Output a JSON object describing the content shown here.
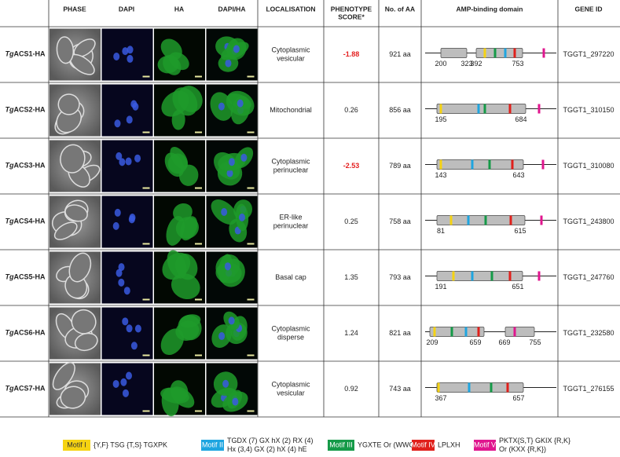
{
  "header": {
    "columns": [
      "PHASE",
      "DAPI",
      "HA",
      "DAPI/HA",
      "LOCALISATION",
      [
        "PHENOTYPE",
        "SCORE*"
      ],
      "No. of AA",
      "AMP-binding domain",
      "GENE ID"
    ]
  },
  "rows": [
    {
      "prefix": "Tg",
      "name": "ACS1-HA",
      "localisation": [
        "Cytoplasmic",
        "vesicular"
      ],
      "score": "-1.88",
      "aa": "921 aa",
      "domain_labels": [
        "200",
        "323",
        "392",
        "753"
      ],
      "gene_id": "TGGT1_297220"
    },
    {
      "prefix": "Tg",
      "name": "ACS2-HA",
      "localisation": [
        "Mitochondrial"
      ],
      "score": "0.26",
      "aa": "856 aa",
      "domain_labels": [
        "195",
        "684"
      ],
      "gene_id": "TGGT1_310150"
    },
    {
      "prefix": "Tg",
      "name": "ACS3-HA",
      "localisation": [
        "Cytoplasmic",
        "perinuclear"
      ],
      "score": "-2.53",
      "aa": "789 aa",
      "domain_labels": [
        "143",
        "643"
      ],
      "gene_id": "TGGT1_310080"
    },
    {
      "prefix": "Tg",
      "name": "ACS4-HA",
      "localisation": [
        "ER-like",
        "perinuclear"
      ],
      "score": "0.25",
      "aa": "758 aa",
      "domain_labels": [
        "81",
        "615"
      ],
      "gene_id": "TGGT1_243800"
    },
    {
      "prefix": "Tg",
      "name": "ACS5-HA",
      "localisation": [
        "Basal cap"
      ],
      "score": "1.35",
      "aa": "793 aa",
      "domain_labels": [
        "191",
        "651"
      ],
      "gene_id": "TGGT1_247760"
    },
    {
      "prefix": "Tg",
      "name": "ACS6-HA",
      "localisation": [
        "Cytoplasmic",
        "disperse"
      ],
      "score": "1.24",
      "aa": "821 aa",
      "domain_labels": [
        "209",
        "659",
        "669",
        "755"
      ],
      "gene_id": "TGGT1_232580"
    },
    {
      "prefix": "Tg",
      "name": "ACS7-HA",
      "localisation": [
        "Cytoplasmic",
        "vesicular"
      ],
      "score": "0.92",
      "aa": "743 aa",
      "domain_labels": [
        "367",
        "657"
      ],
      "gene_id": "TGGT1_276155"
    }
  ],
  "legend": [
    {
      "label": "Motif I",
      "color": "#f5d312",
      "description": [
        "{Y,F} TSG {T,S} TGXPK"
      ]
    },
    {
      "label": "Motif II",
      "color": "#1ea5e0",
      "description": [
        "TGDX (7) GX hX (2) RX (4)",
        "Hx (3,4) GX (2) hX (4) hE"
      ]
    },
    {
      "label": "Motif III",
      "color": "#159a48",
      "description": [
        "YGXTE Or  (WWQTE)"
      ]
    },
    {
      "label": "Motif IV",
      "color": "#e0201b",
      "description": [
        "LPLXH"
      ]
    },
    {
      "label": "Motif V",
      "color": "#e0168e",
      "description": [
        "PKTX{S,T} GKIX {R,K}",
        "Or  (KXX {R,K})"
      ]
    }
  ]
}
